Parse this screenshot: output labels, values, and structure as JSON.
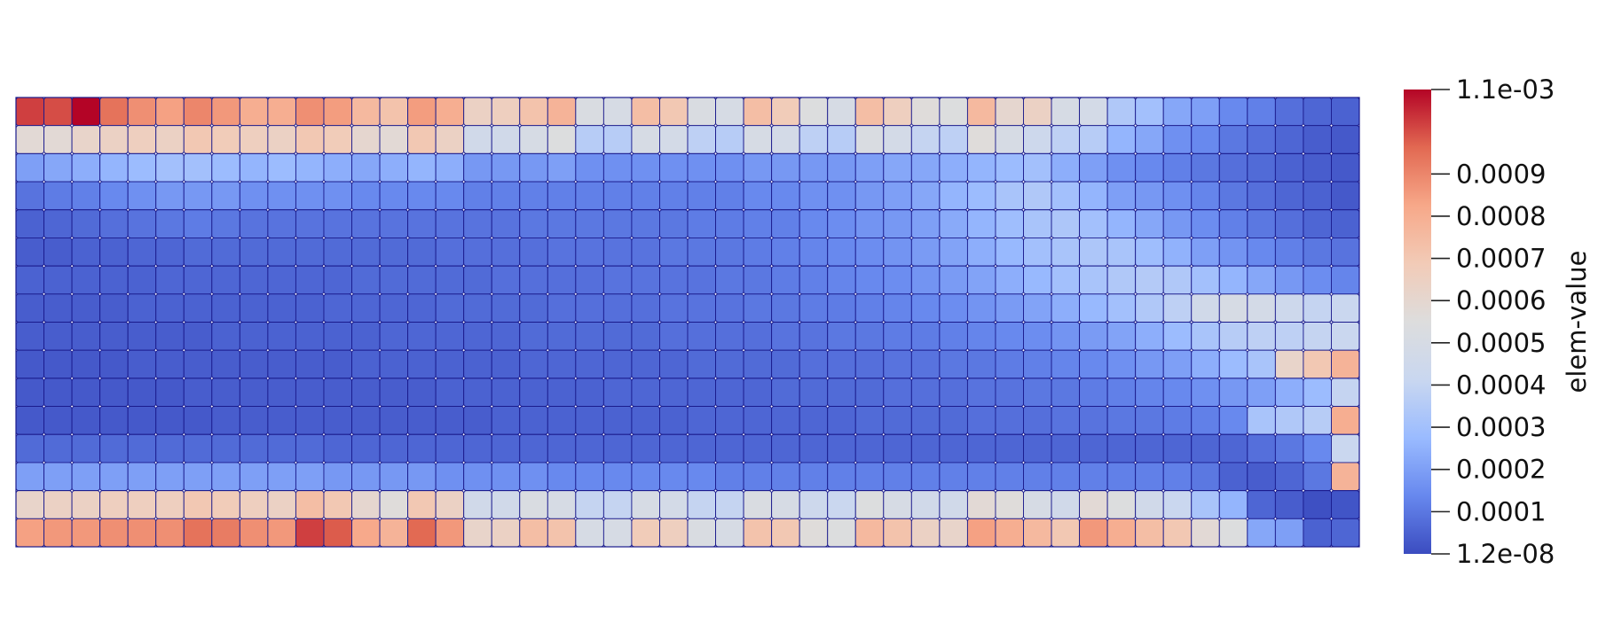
{
  "chart_data": {
    "type": "heatmap",
    "title": "",
    "colorbar": {
      "title": "elem-value",
      "range": [
        1.2e-08,
        0.0011
      ],
      "min_label": "1.2e-08",
      "max_label": "1.1e-03",
      "ticks": [
        {
          "value": 0.0001,
          "label": "0.0001"
        },
        {
          "value": 0.0002,
          "label": "0.0002"
        },
        {
          "value": 0.0003,
          "label": "0.0003"
        },
        {
          "value": 0.0004,
          "label": "0.0004"
        },
        {
          "value": 0.0005,
          "label": "0.0005"
        },
        {
          "value": 0.0006,
          "label": "0.0006"
        },
        {
          "value": 0.0007,
          "label": "0.0007"
        },
        {
          "value": 0.0008,
          "label": "0.0008"
        },
        {
          "value": 0.0009,
          "label": "0.0009"
        }
      ],
      "colormap": [
        "#3b4cc0",
        "#6788ee",
        "#9abbff",
        "#c9d7f0",
        "#dddddd",
        "#f2cbb7",
        "#f7a889",
        "#e26952",
        "#b40426"
      ]
    },
    "grid": {
      "columns": 48,
      "rows": 16,
      "mesh_color": "#1a1a8c"
    },
    "values": [
      [
        0.00102,
        0.001,
        0.0011,
        0.00094,
        0.00088,
        0.00084,
        0.0009,
        0.00086,
        0.0008,
        0.0008,
        0.00088,
        0.00085,
        0.00076,
        0.00072,
        0.00085,
        0.0008,
        0.00064,
        0.00066,
        0.00072,
        0.00078,
        0.00052,
        0.0005,
        0.00074,
        0.0007,
        0.00052,
        0.0005,
        0.00074,
        0.00068,
        0.00054,
        0.0005,
        0.00074,
        0.00066,
        0.00056,
        0.00054,
        0.00076,
        0.0006,
        0.00064,
        0.0005,
        0.00048,
        0.00034,
        0.0003,
        0.00022,
        0.0002,
        0.00014,
        0.00012,
        8e-05,
        6e-05,
        5e-05
      ],
      [
        0.00058,
        0.00058,
        0.00062,
        0.00064,
        0.00066,
        0.00064,
        0.0007,
        0.00068,
        0.00066,
        0.00064,
        0.0007,
        0.00068,
        0.0006,
        0.00058,
        0.0007,
        0.00064,
        0.00046,
        0.00046,
        0.0005,
        0.00054,
        0.00036,
        0.00036,
        0.0005,
        0.00048,
        0.00038,
        0.00036,
        0.0005,
        0.00048,
        0.00038,
        0.00036,
        0.00052,
        0.00048,
        0.0004,
        0.00038,
        0.00056,
        0.0005,
        0.00044,
        0.00038,
        0.00036,
        0.00026,
        0.00022,
        0.00016,
        0.00014,
        0.0001,
        8e-05,
        6e-05,
        4e-05,
        3e-05
      ],
      [
        0.0002,
        0.00022,
        0.00024,
        0.00026,
        0.00028,
        0.0003,
        0.0003,
        0.00028,
        0.00026,
        0.00028,
        0.00026,
        0.00024,
        0.00022,
        0.00024,
        0.00026,
        0.00024,
        0.00018,
        0.00018,
        0.00018,
        0.0002,
        0.00016,
        0.00016,
        0.00016,
        0.00016,
        0.00016,
        0.00016,
        0.00018,
        0.00018,
        0.00018,
        0.00018,
        0.0002,
        0.00022,
        0.00022,
        0.00024,
        0.00026,
        0.00028,
        0.0003,
        0.00024,
        0.0002,
        0.00016,
        0.00014,
        0.00012,
        0.0001,
        8e-05,
        7e-05,
        5e-05,
        4e-05,
        3e-05
      ],
      [
        9e-05,
        0.00011,
        0.00012,
        0.00014,
        0.00016,
        0.00018,
        0.00018,
        0.00018,
        0.00016,
        0.00016,
        0.00016,
        0.00016,
        0.00014,
        0.00014,
        0.00014,
        0.00014,
        0.00012,
        0.00012,
        0.00012,
        0.00012,
        0.00012,
        0.00012,
        0.00012,
        0.00012,
        0.00012,
        0.00012,
        0.00014,
        0.00014,
        0.00016,
        0.00016,
        0.00018,
        0.0002,
        0.00022,
        0.00026,
        0.00028,
        0.00032,
        0.00034,
        0.0003,
        0.00026,
        0.0002,
        0.00018,
        0.00016,
        0.00013,
        0.0001,
        8e-05,
        6e-05,
        5e-05,
        3e-05
      ],
      [
        5e-05,
        6e-05,
        7e-05,
        8e-05,
        9e-05,
        0.0001,
        0.00011,
        0.0001,
        9e-05,
        9e-05,
        9e-05,
        9e-05,
        9e-05,
        9e-05,
        9e-05,
        9e-05,
        9e-05,
        9e-05,
        0.0001,
        0.0001,
        0.0001,
        0.0001,
        0.0001,
        0.0001,
        0.00011,
        0.00011,
        0.00012,
        0.00012,
        0.00014,
        0.00015,
        0.00017,
        0.00018,
        0.0002,
        0.00023,
        0.00026,
        0.00029,
        0.00032,
        0.00033,
        0.0003,
        0.00026,
        0.00022,
        0.00018,
        0.00015,
        0.00012,
        0.0001,
        8e-05,
        6e-05,
        5e-05
      ],
      [
        4e-05,
        4e-05,
        5e-05,
        5e-05,
        6e-05,
        6e-05,
        7e-05,
        7e-05,
        7e-05,
        7e-05,
        7e-05,
        7e-05,
        7e-05,
        7e-05,
        7e-05,
        8e-05,
        8e-05,
        8e-05,
        8e-05,
        9e-05,
        9e-05,
        9e-05,
        9e-05,
        0.0001,
        0.0001,
        0.0001,
        0.00011,
        0.00012,
        0.00013,
        0.00014,
        0.00015,
        0.00017,
        0.00019,
        0.00021,
        0.00024,
        0.00027,
        0.0003,
        0.00032,
        0.00033,
        0.00032,
        0.00029,
        0.00025,
        0.0002,
        0.00017,
        0.00014,
        0.00012,
        0.0001,
        9e-05
      ],
      [
        5e-05,
        5e-05,
        5e-05,
        5e-05,
        5e-05,
        6e-05,
        6e-05,
        6e-05,
        6e-05,
        6e-05,
        6e-05,
        6e-05,
        7e-05,
        7e-05,
        7e-05,
        7e-05,
        7e-05,
        8e-05,
        8e-05,
        8e-05,
        8e-05,
        9e-05,
        9e-05,
        9e-05,
        9e-05,
        0.0001,
        0.0001,
        0.00011,
        0.00012,
        0.00013,
        0.00014,
        0.00015,
        0.00017,
        0.00019,
        0.00021,
        0.00024,
        0.00027,
        0.0003,
        0.00032,
        0.00034,
        0.00035,
        0.00034,
        0.0003,
        0.00026,
        0.00022,
        0.00018,
        0.00015,
        0.00013
      ],
      [
        4e-05,
        4e-05,
        4e-05,
        4e-05,
        5e-05,
        5e-05,
        5e-05,
        5e-05,
        5e-05,
        5e-05,
        5e-05,
        6e-05,
        6e-05,
        6e-05,
        6e-05,
        7e-05,
        7e-05,
        7e-05,
        7e-05,
        8e-05,
        8e-05,
        8e-05,
        8e-05,
        9e-05,
        9e-05,
        9e-05,
        0.0001,
        0.0001,
        0.00011,
        0.00011,
        0.00012,
        0.00013,
        0.00014,
        0.00015,
        0.00017,
        0.00019,
        0.00021,
        0.00024,
        0.00027,
        0.0003,
        0.00034,
        0.00038,
        0.00046,
        0.0005,
        0.00048,
        0.00044,
        0.0004,
        0.00042
      ],
      [
        4e-05,
        4e-05,
        4e-05,
        4e-05,
        4e-05,
        4e-05,
        4e-05,
        5e-05,
        5e-05,
        5e-05,
        5e-05,
        5e-05,
        5e-05,
        6e-05,
        6e-05,
        6e-05,
        6e-05,
        6e-05,
        7e-05,
        7e-05,
        7e-05,
        7e-05,
        7e-05,
        8e-05,
        8e-05,
        8e-05,
        8e-05,
        9e-05,
        9e-05,
        0.0001,
        0.0001,
        0.00011,
        0.00011,
        0.00012,
        0.00013,
        0.00014,
        0.00015,
        0.00017,
        0.00019,
        0.00021,
        0.00024,
        0.00028,
        0.00032,
        0.00036,
        0.00038,
        0.00038,
        0.0004,
        0.00042
      ],
      [
        3e-05,
        3e-05,
        3e-05,
        3e-05,
        4e-05,
        4e-05,
        4e-05,
        4e-05,
        4e-05,
        4e-05,
        4e-05,
        4e-05,
        5e-05,
        5e-05,
        5e-05,
        5e-05,
        5e-05,
        5e-05,
        6e-05,
        6e-05,
        6e-05,
        6e-05,
        6e-05,
        6e-05,
        7e-05,
        7e-05,
        7e-05,
        7e-05,
        8e-05,
        8e-05,
        8e-05,
        9e-05,
        9e-05,
        0.0001,
        0.0001,
        0.00011,
        0.00012,
        0.00013,
        0.00014,
        0.00016,
        0.00018,
        0.0002,
        0.00024,
        0.00028,
        0.00032,
        0.00062,
        0.0007,
        0.00078
      ],
      [
        3e-05,
        3e-05,
        3e-05,
        3e-05,
        3e-05,
        3e-05,
        4e-05,
        4e-05,
        4e-05,
        4e-05,
        4e-05,
        4e-05,
        4e-05,
        4e-05,
        4e-05,
        5e-05,
        5e-05,
        5e-05,
        5e-05,
        5e-05,
        5e-05,
        6e-05,
        6e-05,
        6e-05,
        6e-05,
        6e-05,
        6e-05,
        7e-05,
        7e-05,
        7e-05,
        7e-05,
        8e-05,
        8e-05,
        8e-05,
        9e-05,
        9e-05,
        0.0001,
        0.0001,
        0.00011,
        0.00012,
        0.00013,
        0.00014,
        0.00016,
        0.00018,
        0.0002,
        0.00024,
        0.00028,
        0.0004
      ],
      [
        3e-05,
        3e-05,
        3e-05,
        3e-05,
        3e-05,
        3e-05,
        3e-05,
        4e-05,
        4e-05,
        4e-05,
        4e-05,
        4e-05,
        4e-05,
        4e-05,
        4e-05,
        4e-05,
        4e-05,
        5e-05,
        5e-05,
        5e-05,
        5e-05,
        5e-05,
        5e-05,
        5e-05,
        6e-05,
        6e-05,
        6e-05,
        6e-05,
        6e-05,
        6e-05,
        7e-05,
        7e-05,
        7e-05,
        7e-05,
        8e-05,
        8e-05,
        8e-05,
        9e-05,
        9e-05,
        0.0001,
        0.0001,
        0.00011,
        0.00012,
        0.00014,
        0.00032,
        0.00034,
        0.00036,
        0.0008
      ],
      [
        7e-05,
        7e-05,
        7e-05,
        7e-05,
        7e-05,
        7e-05,
        7e-05,
        7e-05,
        7e-05,
        7e-05,
        7e-05,
        6e-05,
        6e-05,
        6e-05,
        6e-05,
        6e-05,
        6e-05,
        6e-05,
        6e-05,
        6e-05,
        6e-05,
        6e-05,
        6e-05,
        6e-05,
        6e-05,
        6e-05,
        6e-05,
        6e-05,
        6e-05,
        6e-05,
        6e-05,
        6e-05,
        6e-05,
        6e-05,
        6e-05,
        6e-05,
        6e-05,
        6e-05,
        6e-05,
        6e-05,
        6e-05,
        6e-05,
        6e-05,
        6e-05,
        8e-05,
        0.0001,
        0.00014,
        0.00042
      ],
      [
        0.0002,
        0.0002,
        0.0002,
        0.0002,
        0.0002,
        0.0002,
        0.0002,
        0.0002,
        0.0002,
        0.0002,
        0.0002,
        0.00018,
        0.00018,
        0.00018,
        0.00018,
        0.00016,
        0.00016,
        0.00016,
        0.00016,
        0.00014,
        0.00014,
        0.00014,
        0.00014,
        0.00014,
        0.00014,
        0.00012,
        0.00012,
        0.00012,
        0.00012,
        0.00012,
        0.00012,
        0.00012,
        0.00012,
        0.00012,
        0.00012,
        0.00012,
        0.00012,
        0.00012,
        0.00012,
        0.00012,
        0.00012,
        0.00012,
        0.0001,
        5e-05,
        4e-05,
        6e-05,
        0.0001,
        0.00078
      ],
      [
        0.00062,
        0.00064,
        0.00064,
        0.00066,
        0.00066,
        0.00066,
        0.0007,
        0.00068,
        0.00066,
        0.00064,
        0.00074,
        0.0007,
        0.0006,
        0.00056,
        0.0007,
        0.00064,
        0.00046,
        0.00046,
        0.00052,
        0.0005,
        0.0004,
        0.0004,
        0.0005,
        0.00048,
        0.0004,
        0.0004,
        0.00052,
        0.0005,
        0.00044,
        0.00042,
        0.00054,
        0.0005,
        0.00046,
        0.00046,
        0.00058,
        0.00056,
        0.0005,
        0.00046,
        0.00058,
        0.00054,
        0.00046,
        0.00042,
        0.00032,
        0.00026,
        6e-05,
        4e-05,
        1e-05,
        2e-05
      ],
      [
        0.00084,
        0.00086,
        0.00086,
        0.00088,
        0.00088,
        0.00088,
        0.00094,
        0.00092,
        0.00088,
        0.00086,
        0.00102,
        0.00098,
        0.00082,
        0.00078,
        0.00096,
        0.00086,
        0.00062,
        0.00064,
        0.00074,
        0.00072,
        0.0005,
        0.0005,
        0.00068,
        0.00066,
        0.00052,
        0.0005,
        0.00072,
        0.0007,
        0.00056,
        0.00054,
        0.00076,
        0.00072,
        0.00064,
        0.00062,
        0.00084,
        0.0008,
        0.00076,
        0.0007,
        0.00086,
        0.0008,
        0.00074,
        0.0007,
        0.00058,
        0.00054,
        0.00022,
        0.0002,
        5e-05,
        6e-05
      ]
    ]
  }
}
